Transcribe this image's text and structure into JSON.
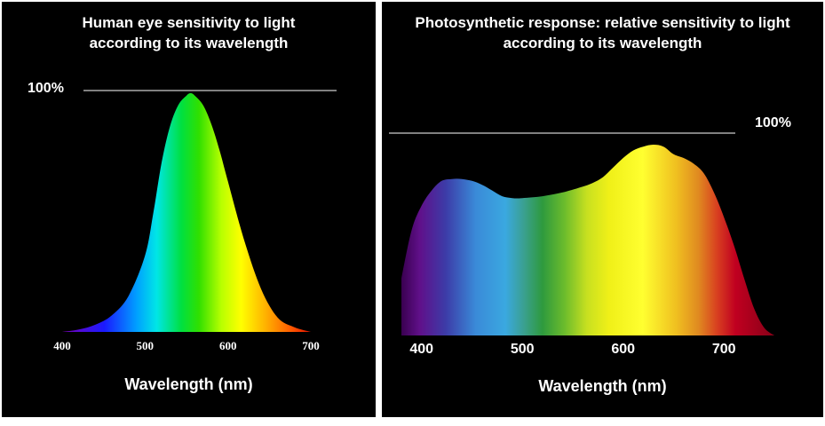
{
  "chart_data": [
    {
      "type": "area",
      "title": "Human eye sensitivity to light according to its wavelength",
      "title_lines": [
        "Human eye sensitivity to light",
        "according to its wavelength"
      ],
      "xlabel": "Wavelength (nm)",
      "ylabel": "",
      "reference_label": "100%",
      "reference_value": 100,
      "xlim": [
        400,
        700
      ],
      "ylim": [
        0,
        100
      ],
      "x_ticks": [
        400,
        500,
        600,
        700
      ],
      "x_tick_labels": [
        "400",
        "500",
        "600",
        "700"
      ],
      "grid": false,
      "fill": "visible-spectrum gradient (violet to red)",
      "x": [
        400,
        420,
        440,
        460,
        480,
        500,
        510,
        520,
        530,
        540,
        550,
        555,
        560,
        570,
        580,
        590,
        600,
        620,
        640,
        660,
        680,
        700
      ],
      "y": [
        0,
        1,
        3,
        7,
        15,
        32,
        50,
        71,
        86,
        95,
        99,
        100,
        99,
        95,
        87,
        76,
        63,
        38,
        18,
        6,
        2,
        0
      ]
    },
    {
      "type": "area",
      "title": "Photosynthetic response: relative sensitivity to light according to its wavelength",
      "title_lines": [
        "Photosynthetic response: relative sensitivity to light",
        "according to its wavelength"
      ],
      "xlabel": "Wavelength (nm)",
      "ylabel": "",
      "reference_label": "100%",
      "reference_value": 100,
      "xlim": [
        380,
        750
      ],
      "ylim": [
        0,
        100
      ],
      "x_ticks": [
        400,
        500,
        600,
        700
      ],
      "x_tick_labels": [
        "400",
        "500",
        "600",
        "700"
      ],
      "grid": false,
      "fill": "visible-spectrum gradient (violet to red)",
      "x": [
        380,
        390,
        400,
        410,
        420,
        430,
        440,
        450,
        460,
        470,
        480,
        490,
        500,
        520,
        540,
        560,
        570,
        580,
        590,
        600,
        610,
        620,
        630,
        640,
        650,
        660,
        670,
        680,
        690,
        700,
        710,
        720,
        730,
        740,
        750
      ],
      "y": [
        30,
        55,
        68,
        76,
        81,
        82,
        82,
        81,
        79,
        76,
        73,
        72,
        72,
        73,
        75,
        78,
        80,
        83,
        88,
        93,
        97,
        99,
        100,
        99,
        95,
        93,
        90,
        85,
        75,
        62,
        47,
        30,
        14,
        4,
        0
      ]
    }
  ]
}
